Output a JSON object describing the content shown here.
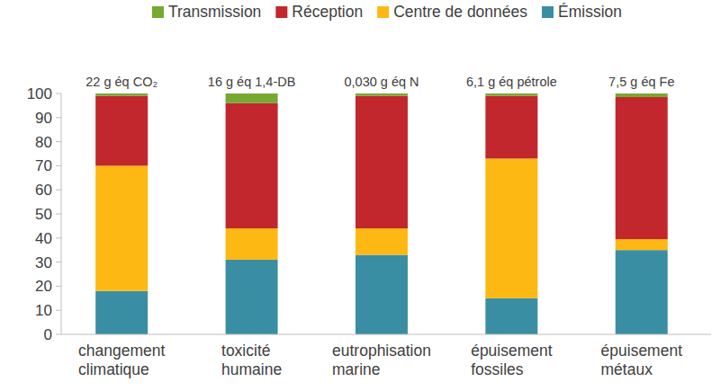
{
  "chart_data": {
    "type": "bar",
    "stacked": true,
    "grid": false,
    "legend": "top",
    "categories": [
      "changement climatique",
      "toxicité humaine",
      "eutrophisation marine",
      "épuisement fossiles",
      "épuisement métaux"
    ],
    "annotations": [
      "22 g éq CO₂",
      "16 g éq 1,4-DB",
      "0,030 g éq N",
      "6,1 g éq pétrole",
      "7,5 g éq Fe"
    ],
    "series": [
      {
        "name": "Émission",
        "color": "#3a8ea4",
        "values": [
          18,
          31,
          33,
          15,
          35
        ]
      },
      {
        "name": "Centre de données",
        "color": "#fdb813",
        "values": [
          52,
          13,
          11,
          58,
          4.5
        ]
      },
      {
        "name": "Réception",
        "color": "#c1272d",
        "values": [
          29,
          52,
          55,
          26,
          59
        ]
      },
      {
        "name": "Transmission",
        "color": "#77a832",
        "values": [
          1,
          4,
          1,
          1,
          1.5
        ]
      }
    ],
    "ylim": [
      0,
      100
    ],
    "yticks": [
      0,
      10,
      20,
      30,
      40,
      50,
      60,
      70,
      80,
      90,
      100
    ]
  }
}
